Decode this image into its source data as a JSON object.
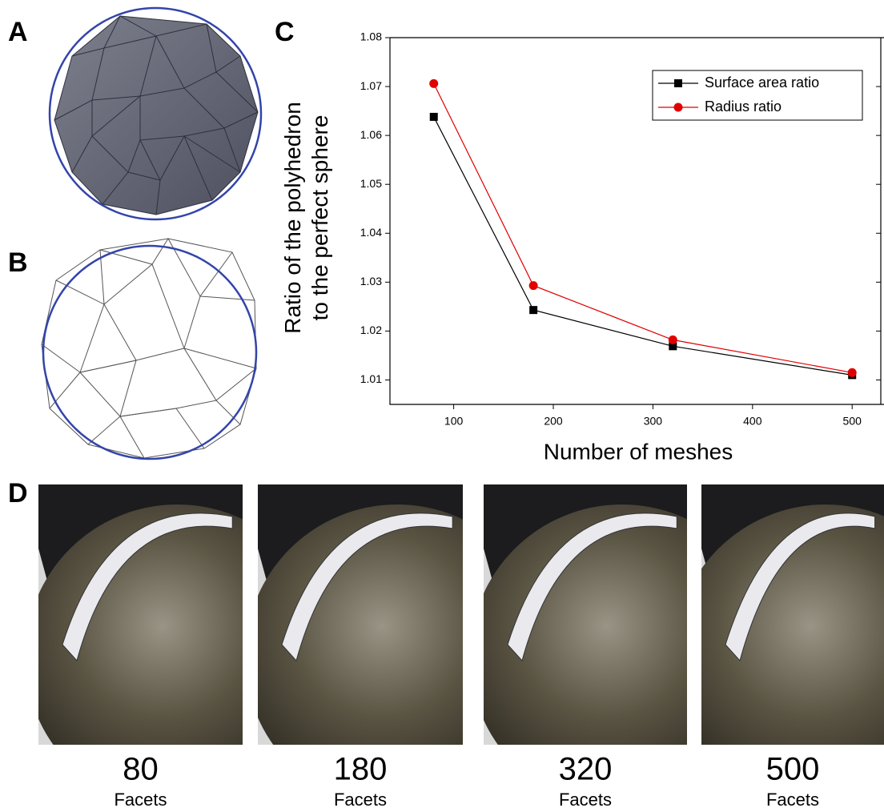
{
  "panels": {
    "a": "A",
    "b": "B",
    "c": "C",
    "d": "D"
  },
  "chart_data": {
    "type": "line",
    "y_label": [
      "Ratio of the polyhedron",
      "to the perfect sphere"
    ],
    "x_label": "Number of meshes",
    "x": [
      80,
      180,
      320,
      500
    ],
    "series": [
      {
        "name": "Surface area ratio",
        "color": "#000000",
        "marker": "square",
        "values": [
          1.0638,
          1.0243,
          1.0169,
          1.011
        ]
      },
      {
        "name": "Radius ratio",
        "color": "#e00000",
        "marker": "circle",
        "values": [
          1.0706,
          1.0293,
          1.0182,
          1.0115
        ]
      }
    ],
    "xlim": [
      36,
      536
    ],
    "ylim": [
      1.005,
      1.08
    ],
    "xticks": [
      100,
      200,
      300,
      400,
      500
    ],
    "yticks": [
      1.01,
      1.02,
      1.03,
      1.04,
      1.05,
      1.06,
      1.07,
      1.08
    ],
    "legend": "upper right"
  },
  "photos": [
    {
      "count": "80",
      "unit": "Facets"
    },
    {
      "count": "180",
      "unit": "Facets"
    },
    {
      "count": "320",
      "unit": "Facets"
    },
    {
      "count": "500",
      "unit": "Facets"
    }
  ]
}
